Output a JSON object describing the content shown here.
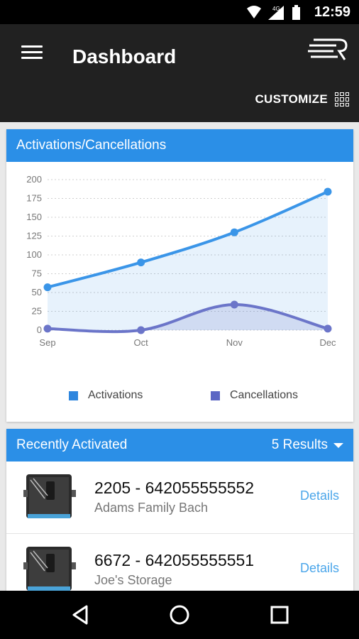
{
  "status": {
    "time": "12:59",
    "network": "4G"
  },
  "header": {
    "title": "Dashboard",
    "customize_label": "CUSTOMIZE"
  },
  "chart_card": {
    "title": "Activations/Cancellations"
  },
  "chart_data": {
    "type": "area",
    "categories": [
      "Sep",
      "Oct",
      "Nov",
      "Dec"
    ],
    "series": [
      {
        "name": "Activations",
        "values": [
          57,
          90,
          130,
          184
        ],
        "color": "#3a95e8"
      },
      {
        "name": "Cancellations",
        "values": [
          2,
          0,
          34,
          2
        ],
        "color": "#6b75c9"
      }
    ],
    "yticks": [
      0,
      25,
      50,
      75,
      100,
      125,
      150,
      175,
      200
    ],
    "ylim": [
      0,
      200
    ],
    "grid": true,
    "legend_position": "bottom"
  },
  "legend": {
    "activations_label": "Activations",
    "cancellations_label": "Cancellations",
    "activations_color": "#2e86de",
    "cancellations_color": "#5c67c4"
  },
  "recent": {
    "title": "Recently Activated",
    "results_label": "5 Results",
    "items": [
      {
        "id_line": "2205 - 642055555552",
        "name": "Adams Family Bach",
        "details_label": "Details"
      },
      {
        "id_line": "6672 - 642055555551",
        "name": "Joe's Storage",
        "details_label": "Details"
      }
    ]
  },
  "colors": {
    "header_bg": "#212121",
    "card_header": "#2b8fe7",
    "link": "#4ba6ea"
  }
}
